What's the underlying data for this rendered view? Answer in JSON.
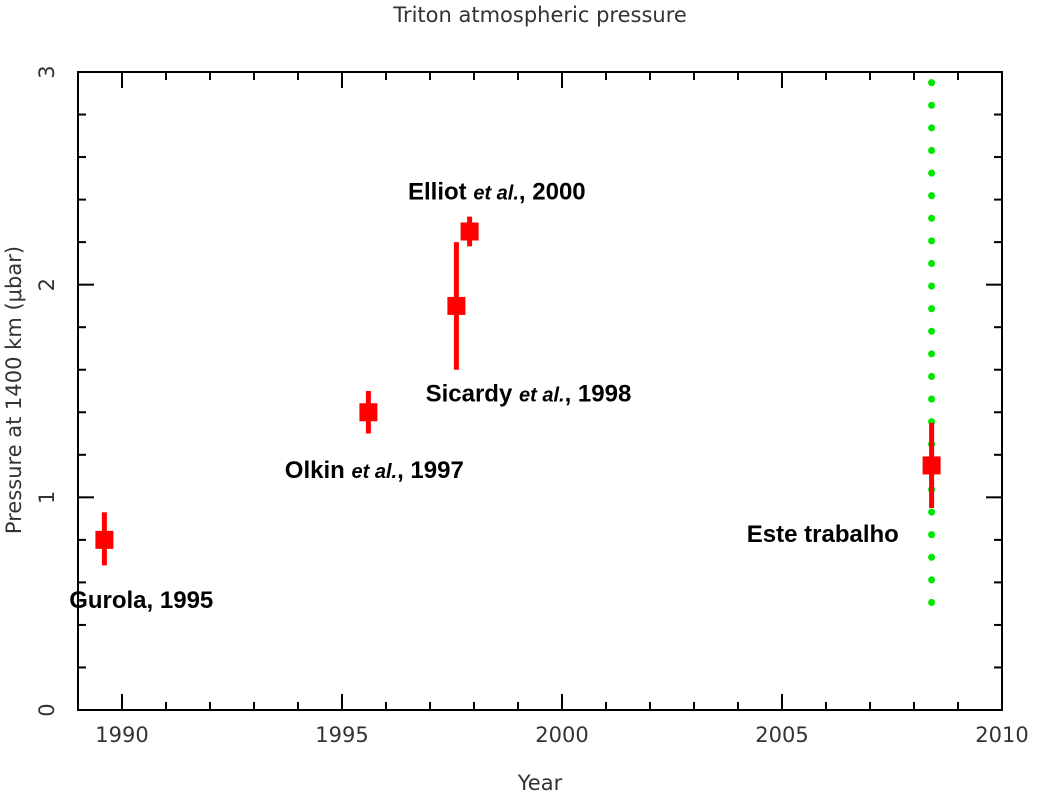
{
  "chart_data": {
    "type": "scatter",
    "title": "Triton atmospheric pressure",
    "xlabel": "Year",
    "ylabel": "Pressure at 1400 km (μbar)",
    "xlim": [
      1989.0,
      2010.0
    ],
    "ylim": [
      0,
      3
    ],
    "xticks": [
      1990,
      1995,
      2000,
      2005,
      2010
    ],
    "yticks": [
      0,
      1,
      2,
      3
    ],
    "grid": false,
    "colors": {
      "points": "#ff0000",
      "reference_line": "#00e600",
      "frame": "#000000"
    },
    "points": [
      {
        "x": 1989.6,
        "y": 0.8,
        "err_low": 0.12,
        "err_high": 0.13
      },
      {
        "x": 1995.6,
        "y": 1.4,
        "err_low": 0.1,
        "err_high": 0.1
      },
      {
        "x": 1997.6,
        "y": 1.9,
        "err_low": 0.3,
        "err_high": 0.3
      },
      {
        "x": 1997.9,
        "y": 2.25,
        "err_low": 0.07,
        "err_high": 0.07
      },
      {
        "x": 2008.4,
        "y": 1.15,
        "err_low": 0.2,
        "err_high": 0.2
      }
    ],
    "reference_line": {
      "x": 2008.4,
      "y_from": 0.47,
      "y_to": 2.95,
      "style": "dotted"
    },
    "annotations": [
      {
        "main": "Gurola, 1995",
        "italic": "",
        "rest": "",
        "x": 1988.8,
        "y": 0.48
      },
      {
        "main": "Olkin ",
        "italic": "et al.",
        "rest": ", 1997",
        "x": 1993.7,
        "y": 1.09
      },
      {
        "main": "Sicardy ",
        "italic": "et al.",
        "rest": ", 1998",
        "x": 1996.9,
        "y": 1.45
      },
      {
        "main": "Elliot ",
        "italic": "et al.",
        "rest": ", 2000",
        "x": 1996.5,
        "y": 2.4
      },
      {
        "main": "Este trabalho",
        "italic": "",
        "rest": "",
        "x": 2004.2,
        "y": 0.79
      }
    ]
  }
}
